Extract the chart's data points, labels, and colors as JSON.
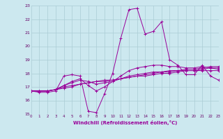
{
  "xlabel": "Windchill (Refroidissement éolien,°C)",
  "bg_color": "#cce8ef",
  "grid_color": "#aaccd4",
  "line_color": "#990099",
  "tick_color": "#660066",
  "xlim": [
    0,
    23
  ],
  "ylim": [
    15,
    23
  ],
  "xticks": [
    0,
    1,
    2,
    3,
    4,
    5,
    6,
    7,
    8,
    9,
    10,
    11,
    12,
    13,
    14,
    15,
    16,
    17,
    18,
    19,
    20,
    21,
    22,
    23
  ],
  "yticks": [
    15,
    16,
    17,
    18,
    19,
    20,
    21,
    22,
    23
  ],
  "series": [
    [
      16.7,
      16.6,
      16.6,
      16.7,
      17.8,
      17.9,
      17.8,
      15.2,
      15.1,
      16.5,
      18.0,
      20.6,
      22.7,
      22.8,
      20.9,
      21.1,
      21.8,
      19.0,
      18.6,
      17.9,
      17.9,
      18.6,
      17.8,
      17.5
    ],
    [
      16.7,
      16.7,
      16.7,
      16.8,
      16.9,
      17.0,
      17.2,
      17.3,
      17.4,
      17.4,
      17.5,
      17.6,
      17.7,
      17.8,
      17.9,
      18.0,
      18.1,
      18.1,
      18.2,
      18.3,
      18.3,
      18.4,
      18.5,
      18.5
    ],
    [
      16.7,
      16.7,
      16.7,
      16.8,
      17.0,
      17.1,
      17.2,
      17.3,
      17.4,
      17.5,
      17.5,
      17.6,
      17.7,
      17.8,
      17.8,
      17.9,
      18.0,
      18.0,
      18.1,
      18.2,
      18.2,
      18.3,
      18.4,
      18.4
    ],
    [
      16.7,
      16.7,
      16.7,
      16.8,
      17.1,
      17.3,
      17.5,
      17.4,
      17.2,
      17.3,
      17.4,
      17.6,
      17.8,
      17.9,
      18.0,
      18.1,
      18.1,
      18.2,
      18.2,
      18.2,
      18.2,
      18.2,
      18.2,
      18.2
    ],
    [
      16.7,
      16.7,
      16.7,
      16.8,
      17.1,
      17.4,
      17.6,
      17.1,
      16.7,
      17.0,
      17.4,
      17.8,
      18.2,
      18.4,
      18.5,
      18.6,
      18.6,
      18.5,
      18.5,
      18.4,
      18.4,
      18.5,
      18.4,
      18.3
    ]
  ]
}
